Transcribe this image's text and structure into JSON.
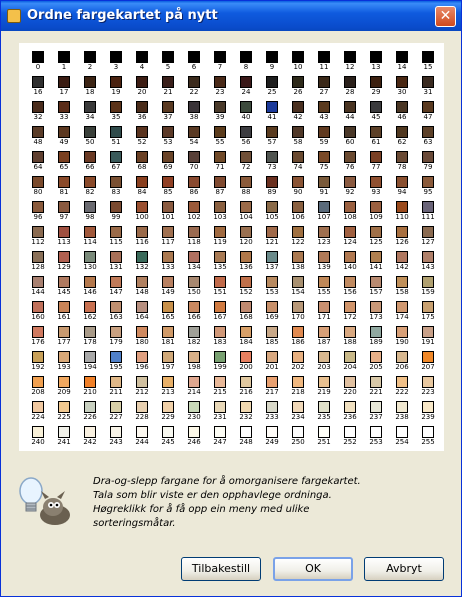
{
  "window": {
    "title": "Ordne fargekartet på nytt",
    "close": "✕"
  },
  "hint": {
    "lines": [
      "Dra-og-slepp fargane for å omorganisere fargekartet.",
      "Tala som blir viste er den opphavlege ordninga.",
      "Høgreklikk for å få opp ein meny med ulike",
      "sorteringsmåtar."
    ]
  },
  "buttons": {
    "reset": "Tilbakestill",
    "ok": "OK",
    "cancel": "Avbryt"
  },
  "palette": {
    "colors": [
      "#000000",
      "#000000",
      "#000000",
      "#000000",
      "#000000",
      "#000000",
      "#000000",
      "#000000",
      "#000000",
      "#000000",
      "#000000",
      "#000000",
      "#000000",
      "#000000",
      "#000000",
      "#000000",
      "#2f2f2f",
      "#3a1c12",
      "#3c2414",
      "#4a2210",
      "#3d1d14",
      "#3a1f1a",
      "#3b2a1c",
      "#4a2a18",
      "#3a1818",
      "#1e1e1e",
      "#2e2a1a",
      "#3a2818",
      "#2a201a",
      "#3c2010",
      "#4a2814",
      "#3a2a20",
      "#4a2c1c",
      "#5a2c18",
      "#3a3a3a",
      "#5a3218",
      "#4a2c1a",
      "#5a3a22",
      "#3a3438",
      "#4a3a2a",
      "#3c4a3c",
      "#1c3a9a",
      "#4a3020",
      "#5a3a1e",
      "#4a3422",
      "#3a3a3c",
      "#4a3624",
      "#5a3a20",
      "#5a3c28",
      "#5c3820",
      "#3a403a",
      "#2f4a4a",
      "#5a3420",
      "#5c3a28",
      "#5a3a24",
      "#5c3c1c",
      "#3c3c40",
      "#5a3c20",
      "#503828",
      "#603a20",
      "#4a3828",
      "#5c4028",
      "#503820",
      "#5c4028",
      "#604030",
      "#7a4020",
      "#6a3a24",
      "#3a5a5a",
      "#6a4024",
      "#6a4428",
      "#584038",
      "#704a28",
      "#705038",
      "#505450",
      "#6a4a30",
      "#7a4a28",
      "#6a4a30",
      "#7a4024",
      "#6a4a34",
      "#6a4a38",
      "#7a4a2c",
      "#8a4a2a",
      "#8a4a2a",
      "#7a5032",
      "#8a4020",
      "#904024",
      "#8a4a30",
      "#804a30",
      "#8a5a3a",
      "#6a3020",
      "#8a5434",
      "#7a5a3a",
      "#8a5a40",
      "#905030",
      "#8a5030",
      "#8a5a3a",
      "#8a5a3c",
      "#8a5a40",
      "#6a6a70",
      "#7a4a30",
      "#9a5030",
      "#8a5a40",
      "#9a5a3a",
      "#8a6040",
      "#9a6a48",
      "#8a6a48",
      "#8a6040",
      "#5a6a7a",
      "#9a6040",
      "#9a6040",
      "#9a4a1c",
      "#6a6478",
      "#8a6a50",
      "#a05040",
      "#a0583a",
      "#9a6a48",
      "#9a6a4a",
      "#a07050",
      "#9a6a50",
      "#a06a40",
      "#9a7050",
      "#a06a4a",
      "#a07040",
      "#a07050",
      "#a06040",
      "#a07048",
      "#a87040",
      "#8a6a50",
      "#8a7058",
      "#b06050",
      "#7a8a7a",
      "#a87058",
      "#3a6a5a",
      "#aa7850",
      "#b07060",
      "#a87a54",
      "#b0784a",
      "#6a8a8a",
      "#aa7850",
      "#b07a58",
      "#b07850",
      "#b08050",
      "#b07860",
      "#b0806a",
      "#a88070",
      "#b07a60",
      "#b4784c",
      "#c07a58",
      "#b08060",
      "#b88060",
      "#a88870",
      "#c06a4a",
      "#c0704a",
      "#b88a60",
      "#a89070",
      "#c08858",
      "#c08a60",
      "#b88a70",
      "#c0905a",
      "#b0a070",
      "#c0705a",
      "#c88458",
      "#c87050",
      "#c09070",
      "#b89080",
      "#c8904a",
      "#c88860",
      "#d07a40",
      "#c08a70",
      "#c8906a",
      "#b89878",
      "#c89070",
      "#d0946a",
      "#c89878",
      "#d09870",
      "#c8a070",
      "#d07a60",
      "#c89a70",
      "#a89a88",
      "#c8a080",
      "#d08a60",
      "#d09a68",
      "#a0a098",
      "#d09878",
      "#d8a068",
      "#c8a888",
      "#e08a50",
      "#d8a078",
      "#d8a880",
      "#90a8a0",
      "#d8a078",
      "#c8a088",
      "#c8a058",
      "#d8a878",
      "#a8a8a8",
      "#5080c8",
      "#e0a080",
      "#d0a878",
      "#d8b088",
      "#78a070",
      "#e88060",
      "#d8a880",
      "#e8b080",
      "#d8b890",
      "#c8b888",
      "#e8b088",
      "#d8b890",
      "#f08828",
      "#f0a050",
      "#f0a860",
      "#f08028",
      "#e0b888",
      "#d0c0a0",
      "#e8b068",
      "#e0a890",
      "#e8b898",
      "#e0c8a0",
      "#e8a070",
      "#f0b880",
      "#e8c090",
      "#e0c0a0",
      "#d8c8a8",
      "#f0c088",
      "#e8c8a0",
      "#f0c8a0",
      "#f0c890",
      "#c8d0c0",
      "#d8d0a8",
      "#e8d0b0",
      "#f0d0a8",
      "#c8d8b8",
      "#e8d8b8",
      "#f0d8b0",
      "#d8d8c8",
      "#f0d8b8",
      "#e0e0c8",
      "#f0e0c0",
      "#e8e8d8",
      "#f0e8d0",
      "#f8e8c8",
      "#f8f0d8",
      "#f0f0e8",
      "#f8f0e0",
      "#f8f4e8",
      "#fcf8f0",
      "#f8f8f0",
      "#fcf8e8",
      "#fcfcf4",
      "#ffffff",
      "#fffcf8",
      "#fcfcfc",
      "#fffff8",
      "#ffffff",
      "#ffffff",
      "#ffffff",
      "#ffffff"
    ]
  }
}
